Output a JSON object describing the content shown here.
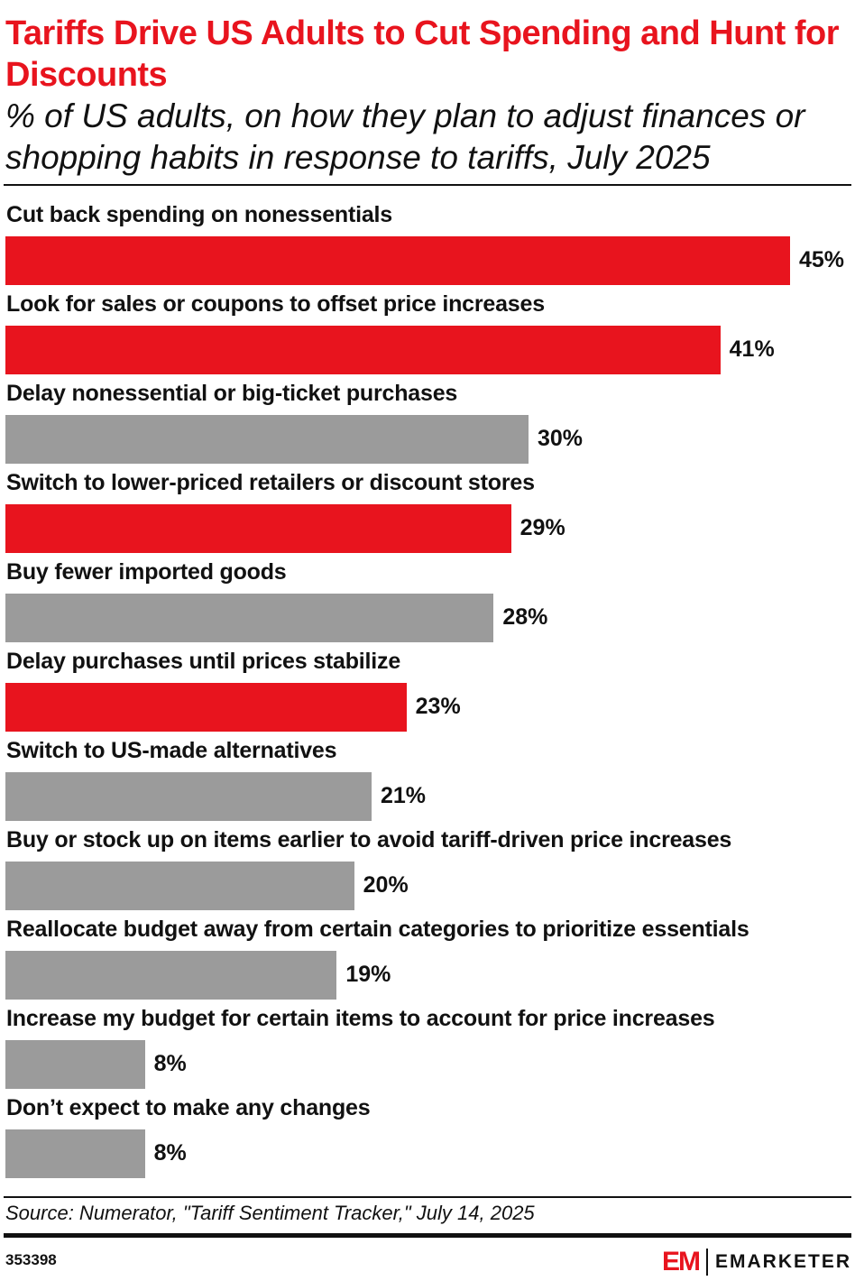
{
  "header": {
    "title": "Tariffs Drive US Adults to Cut Spending and Hunt for Discounts",
    "subtitle": "% of US adults, on how they plan to adjust finances or shopping habits in response to tariffs, July 2025"
  },
  "chart_data": {
    "type": "bar",
    "orientation": "horizontal",
    "title": "Tariffs Drive US Adults to Cut Spending and Hunt for Discounts",
    "categories": [
      "Cut back spending on nonessentials",
      "Look for sales or coupons to offset price increases",
      "Delay nonessential or big-ticket purchases",
      "Switch to lower-priced retailers or discount stores",
      "Buy fewer imported goods",
      "Delay purchases until prices stabilize",
      "Switch to US-made alternatives",
      "Buy or stock up on items earlier to avoid tariff-driven price increases",
      "Reallocate budget away from certain categories to prioritize essentials",
      "Increase my budget for certain items to account for price increases",
      "Don’t expect to make any changes"
    ],
    "values": [
      45,
      41,
      30,
      29,
      28,
      23,
      21,
      20,
      19,
      8,
      8
    ],
    "labels": [
      "45%",
      "41%",
      "30%",
      "29%",
      "28%",
      "23%",
      "21%",
      "20%",
      "19%",
      "8%",
      "8%"
    ],
    "highlight": [
      true,
      true,
      false,
      true,
      false,
      true,
      false,
      false,
      false,
      false,
      false
    ],
    "colors": {
      "highlight": "#e8141e",
      "default": "#9b9b9b"
    },
    "xlim": [
      0,
      45
    ],
    "grid": false
  },
  "footer": {
    "source": "Source: Numerator, \"Tariff Sentiment Tracker,\" July 14, 2025",
    "chart_id": "353398",
    "logo_mark": "EM",
    "logo_name": "EMARKETER"
  }
}
